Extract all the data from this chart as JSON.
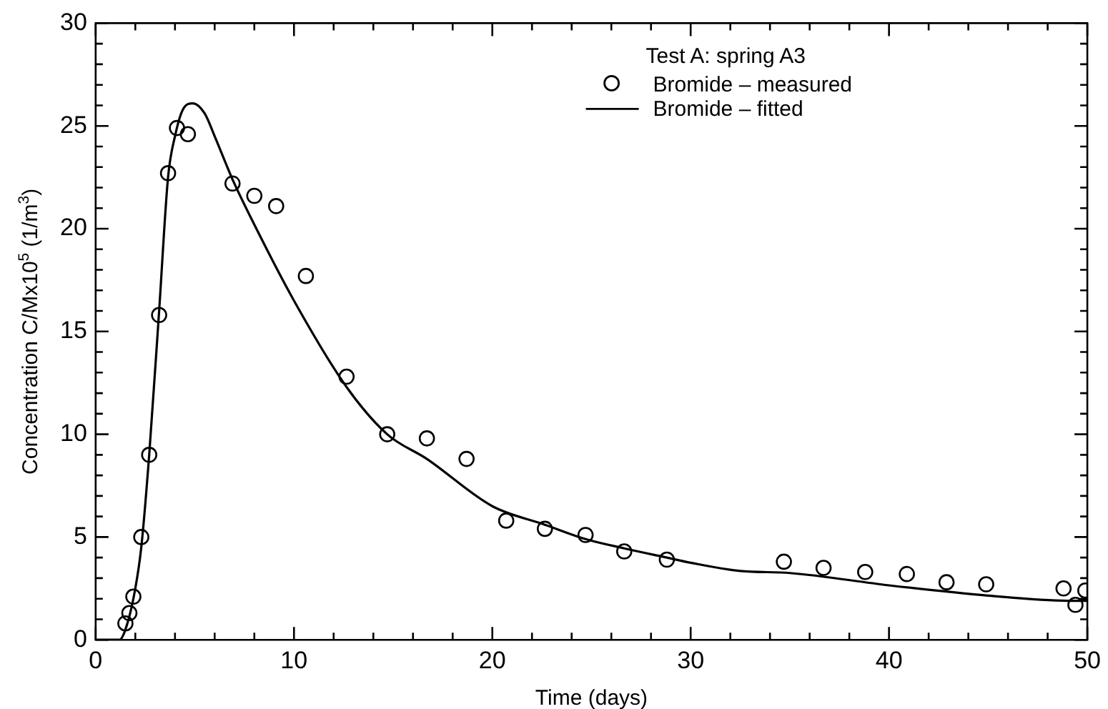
{
  "chart_data": {
    "type": "scatter",
    "xlabel": "Time (days)",
    "ylabel": "Concentration C/Mx10$^{5}$ (1/m$^{3}$)",
    "legend_title": "Test A: spring A3",
    "legend": "top right",
    "grid": false,
    "xlim": [
      0,
      50
    ],
    "ylim": [
      0,
      30
    ],
    "xticks": [
      0,
      {
        "value": 2,
        "label": null
      },
      {
        "value": 4,
        "label": null
      },
      {
        "value": 6,
        "label": null
      },
      {
        "value": 8,
        "label": null
      },
      10,
      {
        "value": 12,
        "label": null
      },
      {
        "value": 14,
        "label": null
      },
      {
        "value": 16,
        "label": null
      },
      {
        "value": 18,
        "label": null
      },
      20,
      {
        "value": 22,
        "label": null
      },
      {
        "value": 24,
        "label": null
      },
      {
        "value": 26,
        "label": null
      },
      {
        "value": 28,
        "label": null
      },
      30,
      {
        "value": 32,
        "label": null
      },
      {
        "value": 34,
        "label": null
      },
      {
        "value": 36,
        "label": null
      },
      {
        "value": 38,
        "label": null
      },
      40,
      {
        "value": 42,
        "label": null
      },
      {
        "value": 44,
        "label": null
      },
      {
        "value": 46,
        "label": null
      },
      {
        "value": 48,
        "label": null
      },
      50
    ],
    "yticks": [
      0,
      {
        "value": 1,
        "label": null
      },
      {
        "value": 2,
        "label": null
      },
      {
        "value": 3,
        "label": null
      },
      {
        "value": 4,
        "label": null
      },
      5,
      {
        "value": 6,
        "label": null
      },
      {
        "value": 7,
        "label": null
      },
      {
        "value": 8,
        "label": null
      },
      {
        "value": 9,
        "label": null
      },
      10,
      {
        "value": 11,
        "label": null
      },
      {
        "value": 12,
        "label": null
      },
      {
        "value": 13,
        "label": null
      },
      {
        "value": 14,
        "label": null
      },
      15,
      {
        "value": 16,
        "label": null
      },
      {
        "value": 17,
        "label": null
      },
      {
        "value": 18,
        "label": null
      },
      {
        "value": 19,
        "label": null
      },
      20,
      {
        "value": 21,
        "label": null
      },
      {
        "value": 22,
        "label": null
      },
      {
        "value": 23,
        "label": null
      },
      {
        "value": 24,
        "label": null
      },
      25,
      {
        "value": 26,
        "label": null
      },
      {
        "value": 27,
        "label": null
      },
      {
        "value": 28,
        "label": null
      },
      {
        "value": 29,
        "label": null
      },
      30
    ],
    "series": [
      {
        "name": "Bromide – measured",
        "marker": "circle",
        "color": "#000000",
        "x": [
          1.5,
          1.7,
          1.9,
          2.3,
          2.7,
          3.2,
          3.65,
          4.1,
          4.65,
          6.9,
          8.0,
          9.1,
          10.6,
          12.65,
          14.7,
          16.7,
          18.7,
          20.7,
          22.65,
          24.7,
          26.65,
          28.8,
          34.7,
          36.7,
          38.8,
          40.9,
          42.9,
          44.9,
          48.8,
          49.4,
          49.9
        ],
        "values": [
          0.8,
          1.3,
          2.1,
          5.0,
          9.0,
          15.8,
          22.7,
          24.9,
          24.6,
          22.2,
          21.6,
          21.1,
          17.7,
          12.8,
          10.0,
          9.8,
          8.8,
          5.8,
          5.4,
          5.1,
          4.3,
          3.9,
          3.8,
          3.5,
          3.3,
          3.2,
          2.8,
          2.7,
          2.5,
          1.7,
          2.4
        ]
      },
      {
        "name": "Bromide – fitted",
        "type": "line",
        "marker": "none",
        "line_style": "solid",
        "color": "#000000",
        "x": [
          0,
          1.2,
          1.6,
          2.0,
          2.3,
          2.7,
          3.2,
          3.65,
          4.0,
          4.4,
          4.9,
          5.5,
          6.0,
          6.9,
          8.0,
          10.0,
          12.65,
          14.7,
          16.7,
          20.0,
          22.65,
          24.7,
          26.65,
          28.8,
          30.0,
          32.5,
          35.0,
          40.0,
          45.0,
          49.0,
          50.0
        ],
        "values": [
          0,
          0,
          0.8,
          2.5,
          4.5,
          9.0,
          16.0,
          22.5,
          24.5,
          25.8,
          26.1,
          25.6,
          24.5,
          22.4,
          20.2,
          16.5,
          12.3,
          10.0,
          8.8,
          6.5,
          5.6,
          4.9,
          4.45,
          4.0,
          3.75,
          3.35,
          3.25,
          2.65,
          2.15,
          1.9,
          1.9
        ]
      }
    ]
  }
}
